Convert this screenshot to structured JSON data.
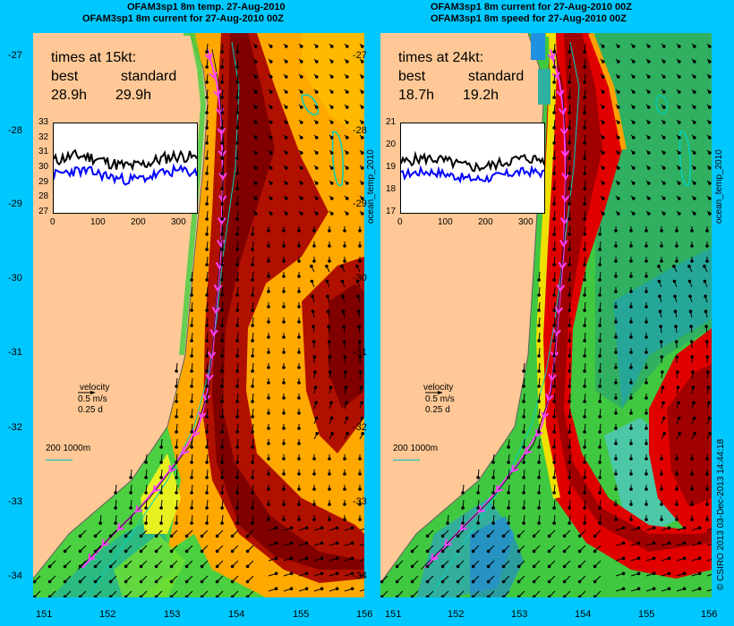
{
  "left_panel": {
    "title_line1": "OFAM3sp1 8m temp. 27-Aug-2010",
    "title_line2": "OFAM3sp1 8m current for 27-Aug-2010 00Z",
    "times_heading": "times at 15kt:",
    "best_label": "best",
    "standard_label": "standard",
    "best_value": "28.9h",
    "standard_value": "29.9h",
    "side_label": "ocean_temp_2010",
    "velocity_label": "velocity",
    "velocity_speed": "0.5 m/s",
    "velocity_time": "0.25 d",
    "contour_label": "200 1000m",
    "inset_y_ticks": [
      "33",
      "32",
      "31",
      "30",
      "29",
      "28",
      "27"
    ],
    "inset_x_ticks": [
      "0",
      "100",
      "200",
      "300"
    ]
  },
  "right_panel": {
    "title_line1": "OFAM3sp1 8m current for 27-Aug-2010 00Z",
    "title_line2": "OFAM3sp1 8m speed for 27-Aug-2010 00Z",
    "times_heading": "times at 24kt:",
    "best_label": "best",
    "standard_label": "standard",
    "best_value": "18.7h",
    "standard_value": "19.2h",
    "side_label": "ocean_temp_2010",
    "velocity_label": "velocity",
    "velocity_speed": "0.5 m/s",
    "velocity_time": "0.25 d",
    "contour_label": "200 1000m",
    "inset_y_ticks": [
      "21",
      "20",
      "19",
      "18",
      "17"
    ],
    "inset_x_ticks": [
      "0",
      "100",
      "200",
      "300"
    ]
  },
  "lat_ticks": [
    "-27",
    "-28",
    "-29",
    "-30",
    "-31",
    "-32",
    "-33",
    "-34"
  ],
  "lon_ticks": [
    "151",
    "152",
    "153",
    "154",
    "155",
    "156"
  ],
  "credit": "© CSIRO 2013   03-Dec-2013 14:44:18",
  "colors": {
    "frame": "#00c8ff",
    "land": "#ffc896",
    "route_best": "#ff40ff",
    "track_best": "#000000",
    "track_standard": "#0000ff",
    "contour": "#00d0c0"
  }
}
